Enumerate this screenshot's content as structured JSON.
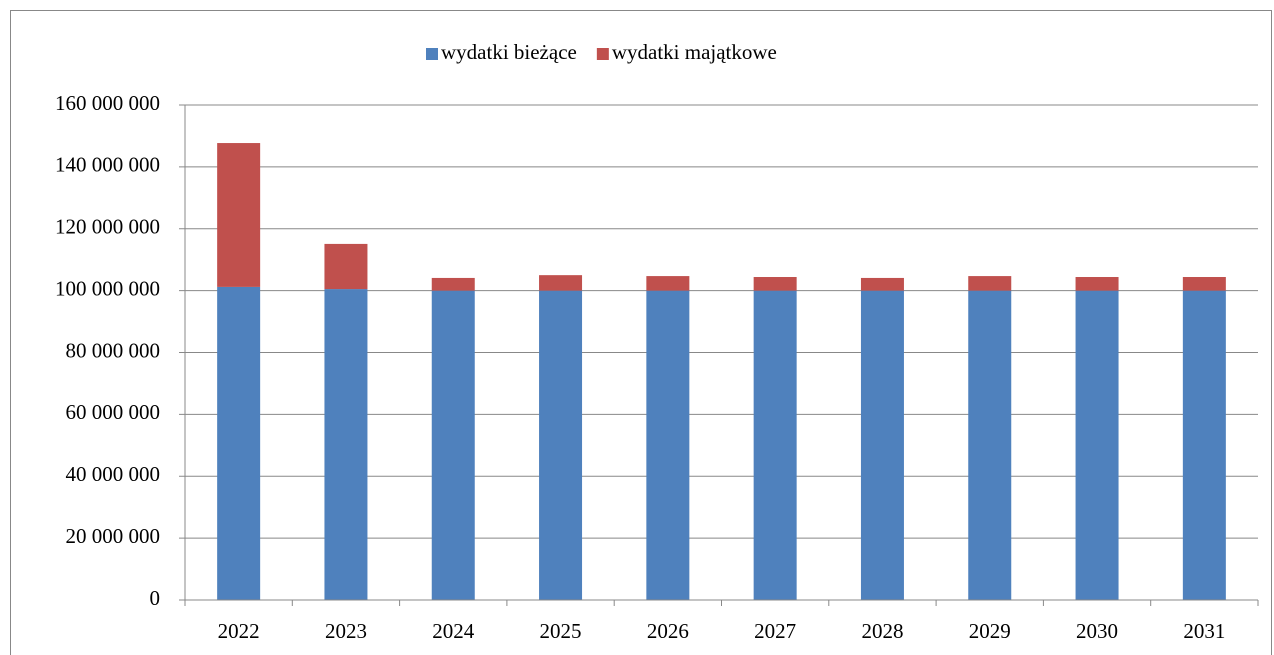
{
  "chart_data": {
    "type": "stacked_bar",
    "categories": [
      "2022",
      "2023",
      "2024",
      "2025",
      "2026",
      "2027",
      "2028",
      "2029",
      "2030",
      "2031"
    ],
    "series": [
      {
        "name": "wydatki bieżące",
        "color": "#4f81bd",
        "values": [
          101200000,
          100500000,
          100000000,
          100000000,
          100000000,
          100000000,
          100000000,
          100000000,
          100000000,
          100000000
        ]
      },
      {
        "name": "wydatki majątkowe",
        "color": "#c0504d",
        "values": [
          46500000,
          14600000,
          4100000,
          5000000,
          4700000,
          4400000,
          4100000,
          4700000,
          4400000,
          4400000
        ]
      }
    ],
    "ylim": [
      0,
      160000000
    ],
    "yticks": [
      0,
      {
        "value": 20000000,
        "label": "20 000 000"
      },
      {
        "value": 40000000,
        "label": "40 000 000"
      },
      {
        "value": 60000000,
        "label": "60 000 000"
      },
      {
        "value": 80000000,
        "label": "80 000 000"
      },
      {
        "value": 100000000,
        "label": "100 000 000"
      },
      {
        "value": 120000000,
        "label": "120 000 000"
      },
      {
        "value": 140000000,
        "label": "140 000 000"
      },
      {
        "value": 160000000,
        "label": "160 000 000"
      }
    ],
    "grid": true,
    "legend": "top"
  }
}
